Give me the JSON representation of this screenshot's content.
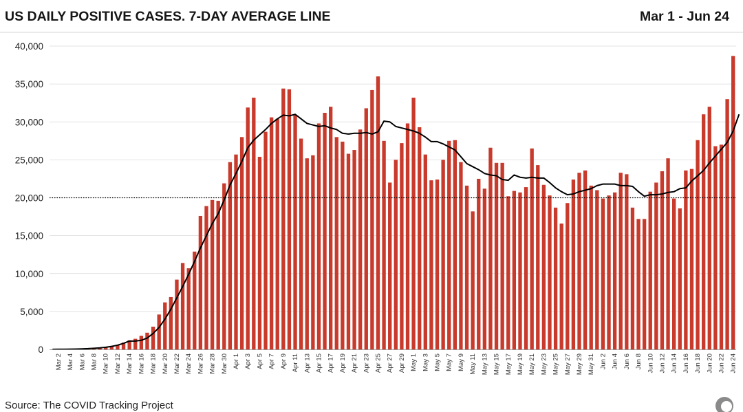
{
  "header": {
    "title": "US DAILY POSITIVE CASES. 7-DAY AVERAGE LINE",
    "date_range": "Mar 1 - Jun 24"
  },
  "footer": {
    "source": "Source: The COVID Tracking Project",
    "logo_icon": "circle-logo-icon"
  },
  "colors": {
    "bar": "#c83a2c",
    "line": "#000000",
    "reference_line": "#000000",
    "grid": "#d9d9d9",
    "divider": "#e4e4e4"
  },
  "chart_data": {
    "type": "bar",
    "title": "US DAILY POSITIVE CASES. 7-DAY AVERAGE LINE",
    "subtitle": "Mar 1 - Jun 24",
    "xlabel": "",
    "ylabel": "",
    "ylim": [
      0,
      40000
    ],
    "y_ticks": [
      0,
      5000,
      10000,
      15000,
      20000,
      25000,
      30000,
      35000,
      40000
    ],
    "y_tick_labels": [
      "0",
      "5,000",
      "10,000",
      "15,000",
      "20,000",
      "25,000",
      "30,000",
      "35,000",
      "40,000"
    ],
    "grid": true,
    "x_tick_labels": [
      "Mar 2",
      "Mar 4",
      "Mar 6",
      "Mar 8",
      "Mar 10",
      "Mar 12",
      "Mar 14",
      "Mar 16",
      "Mar 18",
      "Mar 20",
      "Mar 22",
      "Mar 24",
      "Mar 26",
      "Mar 28",
      "Mar 30",
      "Apr 1",
      "Apr 3",
      "Apr 5",
      "Apr 7",
      "Apr 9",
      "Apr 11",
      "Apr 13",
      "Apr 15",
      "Apr 17",
      "Apr 19",
      "Apr 21",
      "Apr 23",
      "Apr 25",
      "Apr 27",
      "Apr 29",
      "May 1",
      "May 3",
      "May 5",
      "May 7",
      "May 9",
      "May 11",
      "May 13",
      "May 15",
      "May 17",
      "May 19",
      "May 21",
      "May 23",
      "May 25",
      "May 27",
      "May 29",
      "May 31",
      "Jun 2",
      "Jun 4",
      "Jun 6",
      "Jun 8",
      "Jun 10",
      "Jun 12",
      "Jun 14",
      "Jun 16",
      "Jun 18",
      "Jun 20",
      "Jun 22",
      "Jun 24"
    ],
    "reference_line": {
      "value": 20000,
      "style": "dotted"
    },
    "series": [
      {
        "type": "bar",
        "values": [
          10,
          20,
          25,
          40,
          60,
          90,
          120,
          180,
          230,
          330,
          450,
          600,
          900,
          1200,
          1400,
          1800,
          2200,
          3000,
          4600,
          6200,
          6900,
          9200,
          11400,
          10700,
          12900,
          17600,
          18900,
          19700,
          19600,
          21900,
          24700,
          25700,
          28000,
          31900,
          33200,
          25400,
          28700,
          30600,
          30400,
          34400,
          34300,
          30900,
          27800,
          25200,
          25600,
          29800,
          31200,
          32000,
          28000,
          27400,
          25800,
          26300,
          29000,
          31800,
          34200,
          36000,
          27500,
          22000,
          25000,
          27200,
          29800,
          33200,
          29300,
          25700,
          22300,
          22400,
          25000,
          27500,
          27600,
          24700,
          21600,
          18200,
          22500,
          21200,
          26600,
          24600,
          24600,
          20200,
          20900,
          20700,
          21400,
          26500,
          24300,
          21700,
          20300,
          18700,
          16600,
          19300,
          22400,
          23300,
          23600,
          21600,
          21000,
          19900,
          20300,
          20700,
          23300,
          23100,
          18700,
          17200,
          17200,
          20800,
          22000,
          23500,
          25200,
          19900,
          18600,
          23600,
          23800,
          27600,
          31000,
          32000,
          26800,
          27000,
          33000,
          38700
        ]
      },
      {
        "type": "line",
        "values": [
          10,
          20,
          25,
          35,
          50,
          70,
          100,
          150,
          200,
          280,
          400,
          560,
          800,
          1100,
          1100,
          1200,
          1500,
          2100,
          2900,
          4000,
          5300,
          6800,
          8300,
          9900,
          11600,
          13400,
          15000,
          16600,
          17900,
          19700,
          21700,
          23200,
          24800,
          26600,
          27600,
          28300,
          29000,
          29800,
          30400,
          30900,
          30800,
          31000,
          30400,
          29800,
          29600,
          29400,
          29500,
          29200,
          29000,
          28500,
          28400,
          28500,
          28500,
          28600,
          28400,
          28700,
          30100,
          30000,
          29400,
          29200,
          29000,
          28800,
          28500,
          28000,
          27400,
          27400,
          27100,
          26700,
          26300,
          25400,
          24500,
          24100,
          23700,
          23200,
          23000,
          22900,
          22400,
          22300,
          23000,
          22700,
          22600,
          22700,
          22600,
          22600,
          22000,
          21300,
          20800,
          20400,
          20500,
          20800,
          21000,
          21200,
          21600,
          21800,
          21800,
          21800,
          21600,
          21600,
          21500,
          20800,
          20200,
          20400,
          20400,
          20500,
          20700,
          20800,
          21200,
          21300,
          22200,
          22900,
          23600,
          24600,
          25500,
          26400,
          27300,
          28800,
          31000
        ]
      }
    ]
  }
}
